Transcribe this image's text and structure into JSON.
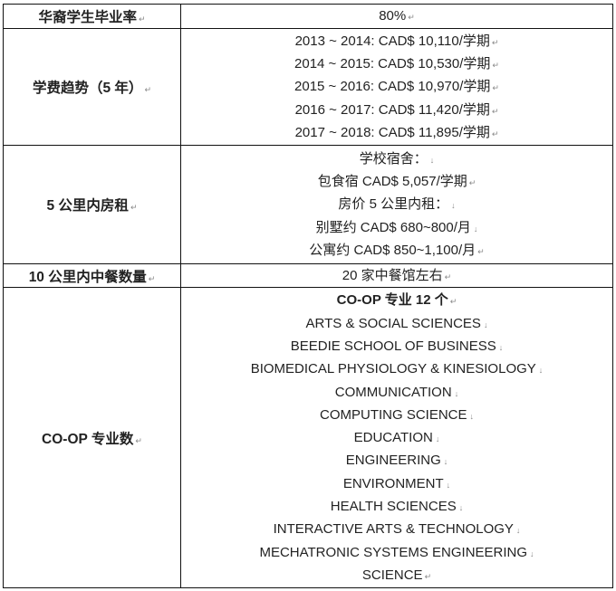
{
  "rows": [
    {
      "label": "华裔学生毕业率",
      "values": [
        "80%"
      ]
    },
    {
      "label": "学费趋势（5 年）",
      "values": [
        "2013 ~ 2014: CAD$ 10,110/学期",
        "2014 ~ 2015: CAD$ 10,530/学期",
        "2015 ~ 2016: CAD$ 10,970/学期",
        "2016 ~ 2017: CAD$ 11,420/学期",
        "2017 ~ 2018: CAD$ 11,895/学期"
      ]
    },
    {
      "label": "5 公里内房租",
      "values": [
        "学校宿舍：",
        "包食宿 CAD$ 5,057/学期",
        "房价 5 公里内租：",
        "别墅约 CAD$ 680~800/月",
        "公寓约 CAD$ 850~1,100/月"
      ]
    },
    {
      "label": "10 公里内中餐数量",
      "values": [
        "20 家中餐馆左右"
      ]
    },
    {
      "label": "CO-OP 专业数",
      "values": [
        "CO-OP 专业 12 个",
        "ARTS & SOCIAL SCIENCES",
        "BEEDIE SCHOOL OF BUSINESS",
        "BIOMEDICAL PHYSIOLOGY & KINESIOLOGY",
        "COMMUNICATION",
        "COMPUTING SCIENCE",
        "EDUCATION",
        "ENGINEERING",
        "ENVIRONMENT",
        "HEALTH SCIENCES",
        "INTERACTIVE ARTS & TECHNOLOGY",
        "MECHATRONIC SYSTEMS ENGINEERING",
        "SCIENCE"
      ]
    }
  ]
}
